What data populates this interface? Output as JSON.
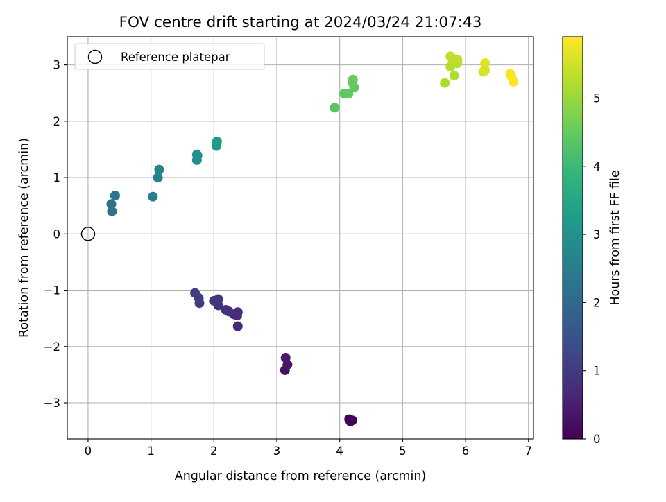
{
  "chart_data": {
    "type": "scatter",
    "title": "FOV centre drift starting at 2024/03/24 21:07:43",
    "xlabel": "Angular distance from reference (arcmin)",
    "ylabel": "Rotation from reference (arcmin)",
    "xlim": [
      -0.33,
      7.08
    ],
    "ylim": [
      -3.64,
      3.5
    ],
    "xticks": [
      0,
      1,
      2,
      3,
      4,
      5,
      6,
      7
    ],
    "xtick_labels": [
      "0",
      "1",
      "2",
      "3",
      "4",
      "5",
      "6",
      "7"
    ],
    "yticks": [
      -3,
      -2,
      -1,
      0,
      1,
      2,
      3
    ],
    "ytick_labels": [
      "−3",
      "−2",
      "−1",
      "0",
      "1",
      "2",
      "3"
    ],
    "grid": true,
    "legend": {
      "position": "upper-left",
      "entries": [
        {
          "label": "Reference platepar",
          "marker": "open-circle"
        }
      ]
    },
    "reference_point": {
      "x": 0,
      "y": 0
    },
    "colorbar": {
      "label": "Hours from first FF file",
      "colormap": "viridis",
      "range": [
        0,
        5.9
      ],
      "ticks": [
        0,
        1,
        2,
        3,
        4,
        5
      ],
      "tick_labels": [
        "0",
        "1",
        "2",
        "3",
        "4",
        "5"
      ]
    },
    "points": [
      {
        "x": 4.15,
        "y": -3.29,
        "t": 0.0
      },
      {
        "x": 4.17,
        "y": -3.33,
        "t": 0.02
      },
      {
        "x": 4.2,
        "y": -3.31,
        "t": 0.05
      },
      {
        "x": 3.13,
        "y": -2.42,
        "t": 0.3
      },
      {
        "x": 3.17,
        "y": -2.32,
        "t": 0.35
      },
      {
        "x": 3.14,
        "y": -2.2,
        "t": 0.4
      },
      {
        "x": 2.38,
        "y": -1.64,
        "t": 0.65
      },
      {
        "x": 2.37,
        "y": -1.45,
        "t": 0.7
      },
      {
        "x": 2.38,
        "y": -1.39,
        "t": 0.73
      },
      {
        "x": 2.32,
        "y": -1.43,
        "t": 0.76
      },
      {
        "x": 2.24,
        "y": -1.38,
        "t": 0.8
      },
      {
        "x": 2.19,
        "y": -1.35,
        "t": 0.83
      },
      {
        "x": 2.07,
        "y": -1.27,
        "t": 0.87
      },
      {
        "x": 2.07,
        "y": -1.16,
        "t": 0.9
      },
      {
        "x": 2.0,
        "y": -1.19,
        "t": 0.93
      },
      {
        "x": 1.77,
        "y": -1.23,
        "t": 1.0
      },
      {
        "x": 1.76,
        "y": -1.14,
        "t": 1.03
      },
      {
        "x": 1.7,
        "y": -1.05,
        "t": 1.06
      },
      {
        "x": 0.38,
        "y": 0.4,
        "t": 2.2
      },
      {
        "x": 0.37,
        "y": 0.53,
        "t": 2.25
      },
      {
        "x": 0.43,
        "y": 0.68,
        "t": 2.3
      },
      {
        "x": 1.03,
        "y": 0.66,
        "t": 2.55
      },
      {
        "x": 1.11,
        "y": 1.0,
        "t": 2.6
      },
      {
        "x": 1.13,
        "y": 1.14,
        "t": 2.65
      },
      {
        "x": 1.73,
        "y": 1.31,
        "t": 2.9
      },
      {
        "x": 1.74,
        "y": 1.39,
        "t": 2.93
      },
      {
        "x": 1.73,
        "y": 1.41,
        "t": 2.96
      },
      {
        "x": 2.04,
        "y": 1.56,
        "t": 3.15
      },
      {
        "x": 2.05,
        "y": 1.64,
        "t": 3.2
      },
      {
        "x": 3.92,
        "y": 2.24,
        "t": 4.35
      },
      {
        "x": 4.07,
        "y": 2.49,
        "t": 4.4
      },
      {
        "x": 4.14,
        "y": 2.49,
        "t": 4.43
      },
      {
        "x": 4.23,
        "y": 2.6,
        "t": 4.46
      },
      {
        "x": 4.2,
        "y": 2.69,
        "t": 4.49
      },
      {
        "x": 4.21,
        "y": 2.74,
        "t": 4.52
      },
      {
        "x": 5.67,
        "y": 2.68,
        "t": 5.15
      },
      {
        "x": 5.82,
        "y": 2.81,
        "t": 5.2
      },
      {
        "x": 5.76,
        "y": 2.97,
        "t": 5.23
      },
      {
        "x": 5.79,
        "y": 3.02,
        "t": 5.26
      },
      {
        "x": 5.87,
        "y": 3.03,
        "t": 5.29
      },
      {
        "x": 5.87,
        "y": 3.09,
        "t": 5.31
      },
      {
        "x": 5.84,
        "y": 3.1,
        "t": 5.33
      },
      {
        "x": 5.76,
        "y": 3.15,
        "t": 5.35
      },
      {
        "x": 6.28,
        "y": 2.88,
        "t": 5.55
      },
      {
        "x": 6.31,
        "y": 2.9,
        "t": 5.57
      },
      {
        "x": 6.31,
        "y": 3.03,
        "t": 5.6
      },
      {
        "x": 6.71,
        "y": 2.84,
        "t": 5.8
      },
      {
        "x": 6.73,
        "y": 2.79,
        "t": 5.83
      },
      {
        "x": 6.76,
        "y": 2.7,
        "t": 5.86
      }
    ]
  }
}
